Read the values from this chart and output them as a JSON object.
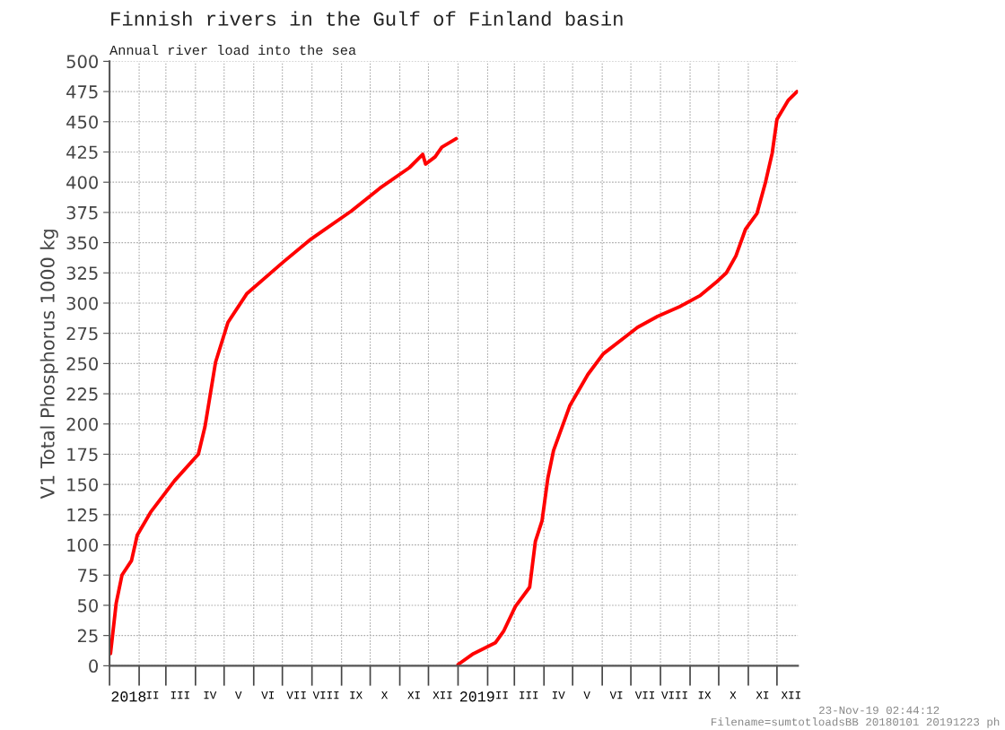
{
  "chart_data": {
    "type": "line",
    "title": "Finnish rivers in the Gulf of Finland basin",
    "subtitle": "Annual river load into the sea",
    "ylabel": "V1 Total Phosphorus 1000 kg",
    "annotations": [
      "23-Nov-19 02:44:12",
      "Filename=sumtotloadsBB 20180101 20191223 ph"
    ],
    "series": [
      {
        "color": "#ff0000",
        "x": [
          "2018-01-02",
          "2018-01-08",
          "2018-01-14",
          "2018-01-24",
          "2018-01-30",
          "2018-02-13",
          "2018-03-10",
          "2018-04-04",
          "2018-04-11",
          "2018-04-22",
          "2018-05-05",
          "2018-05-25",
          "2018-07-02",
          "2018-07-31",
          "2018-09-11",
          "2018-10-11",
          "2018-11-11",
          "2018-11-25",
          "2018-11-28",
          "2018-12-08",
          "2018-12-15",
          "2018-12-30"
        ],
        "values": [
          10,
          52,
          75,
          87,
          108,
          127,
          153,
          175,
          198,
          251,
          284,
          308,
          334,
          353,
          376,
          395,
          412,
          423,
          415,
          421,
          429,
          436
        ]
      },
      {
        "color": "#ff0000",
        "x": [
          "2019-01-01",
          "2019-01-17",
          "2019-02-09",
          "2019-02-18",
          "2019-03-02",
          "2019-03-17",
          "2019-03-23",
          "2019-03-30",
          "2019-04-05",
          "2019-04-11",
          "2019-04-28",
          "2019-05-17",
          "2019-06-02",
          "2019-06-25",
          "2019-07-08",
          "2019-07-29",
          "2019-08-21",
          "2019-09-11",
          "2019-09-28",
          "2019-10-09",
          "2019-10-19",
          "2019-10-29",
          "2019-11-10",
          "2019-11-19",
          "2019-11-26",
          "2019-12-01",
          "2019-12-13",
          "2019-12-22"
        ],
        "values": [
          1,
          10,
          19,
          29,
          49,
          65,
          103,
          120,
          155,
          178,
          215,
          241,
          258,
          272,
          280,
          289,
          297,
          306,
          317,
          325,
          339,
          361,
          374,
          400,
          424,
          452,
          468,
          475
        ]
      }
    ],
    "xlim": [
      "2018-01-01",
      "2019-12-23"
    ],
    "xticks": [
      {
        "value": "2018-01-01",
        "label": null
      },
      {
        "value": "2018-02-01",
        "label": null
      },
      {
        "value": "2018-03-01",
        "label": null
      },
      {
        "value": "2018-04-01",
        "label": null
      },
      {
        "value": "2018-05-01",
        "label": null
      },
      {
        "value": "2018-06-01",
        "label": null
      },
      {
        "value": "2018-07-01",
        "label": null
      },
      {
        "value": "2018-08-01",
        "label": null
      },
      {
        "value": "2018-09-01",
        "label": null
      },
      {
        "value": "2018-10-01",
        "label": null
      },
      {
        "value": "2018-11-01",
        "label": null
      },
      {
        "value": "2018-12-01",
        "label": null
      },
      {
        "value": "2019-01-01",
        "label": null
      },
      {
        "value": "2019-02-01",
        "label": null
      },
      {
        "value": "2019-03-01",
        "label": null
      },
      {
        "value": "2019-04-01",
        "label": null
      },
      {
        "value": "2019-05-01",
        "label": null
      },
      {
        "value": "2019-06-01",
        "label": null
      },
      {
        "value": "2019-07-01",
        "label": null
      },
      {
        "value": "2019-08-01",
        "label": null
      },
      {
        "value": "2019-09-01",
        "label": null
      },
      {
        "value": "2019-10-01",
        "label": null
      },
      {
        "value": "2019-11-01",
        "label": null
      },
      {
        "value": "2019-12-01",
        "label": null
      },
      {
        "value": "2018-01-21",
        "label": "2018"
      },
      {
        "value": "2018-02-15",
        "label": "II"
      },
      {
        "value": "2018-03-16",
        "label": "III"
      },
      {
        "value": "2018-04-16",
        "label": "IV"
      },
      {
        "value": "2018-05-16",
        "label": "V"
      },
      {
        "value": "2018-06-16",
        "label": "VI"
      },
      {
        "value": "2018-07-16",
        "label": "VII"
      },
      {
        "value": "2018-08-16",
        "label": "VIII"
      },
      {
        "value": "2018-09-16",
        "label": "IX"
      },
      {
        "value": "2018-10-16",
        "label": "X"
      },
      {
        "value": "2018-11-16",
        "label": "XI"
      },
      {
        "value": "2018-12-16",
        "label": "XII"
      },
      {
        "value": "2019-01-21",
        "label": "2019"
      },
      {
        "value": "2019-02-16",
        "label": "II"
      },
      {
        "value": "2019-03-16",
        "label": "III"
      },
      {
        "value": "2019-04-16",
        "label": "IV"
      },
      {
        "value": "2019-05-16",
        "label": "V"
      },
      {
        "value": "2019-06-16",
        "label": "VI"
      },
      {
        "value": "2019-07-16",
        "label": "VII"
      },
      {
        "value": "2019-08-16",
        "label": "VIII"
      },
      {
        "value": "2019-09-16",
        "label": "IX"
      },
      {
        "value": "2019-10-16",
        "label": "X"
      },
      {
        "value": "2019-11-16",
        "label": "XI"
      },
      {
        "value": "2019-12-16",
        "label": "XII"
      }
    ],
    "ylim": [
      0,
      500
    ],
    "yticks": [
      0,
      25,
      50,
      75,
      100,
      125,
      150,
      175,
      200,
      225,
      250,
      275,
      300,
      325,
      350,
      375,
      400,
      425,
      450,
      475,
      500
    ],
    "grid": true,
    "legend": false,
    "marker": "none",
    "line_style": "solid"
  }
}
